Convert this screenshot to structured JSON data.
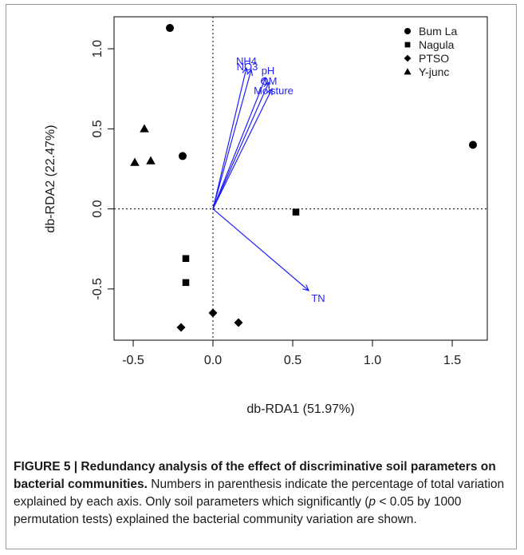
{
  "chart_data": {
    "type": "scatter",
    "xlabel": "db-RDA1 (51.97%)",
    "ylabel": "db-RDA2 (22.47%)",
    "xlim": [
      -0.62,
      1.72
    ],
    "ylim": [
      -0.82,
      1.2
    ],
    "xticks": [
      -0.5,
      0.0,
      0.5,
      1.0,
      1.5
    ],
    "yticks": [
      -0.5,
      0.0,
      0.5,
      1.0
    ],
    "xtick_labels": [
      "-0.5",
      "0.0",
      "0.5",
      "1.0",
      "1.5"
    ],
    "ytick_labels": [
      "-0.5",
      "0.0",
      "0.5",
      "1.0"
    ],
    "legend_position": "top-right",
    "reference_lines": "dotted lines at x=0 and y=0",
    "grid": false,
    "series": [
      {
        "name": "Bum La",
        "marker": "circle",
        "points": [
          [
            -0.27,
            1.13
          ],
          [
            -0.19,
            0.33
          ],
          [
            1.63,
            0.4
          ]
        ]
      },
      {
        "name": "Nagula",
        "marker": "square",
        "points": [
          [
            -0.17,
            -0.31
          ],
          [
            -0.17,
            -0.46
          ],
          [
            0.52,
            -0.02
          ]
        ]
      },
      {
        "name": "PTSO",
        "marker": "diamond",
        "points": [
          [
            -0.2,
            -0.74
          ],
          [
            0.0,
            -0.65
          ],
          [
            0.16,
            -0.71
          ]
        ]
      },
      {
        "name": "Y-junc",
        "marker": "triangle",
        "points": [
          [
            -0.43,
            0.5
          ],
          [
            -0.39,
            0.3
          ],
          [
            -0.49,
            0.29
          ]
        ]
      }
    ],
    "vectors": [
      {
        "label": "NH4",
        "x": 0.21,
        "y": 0.88
      },
      {
        "label": "NO3",
        "x": 0.24,
        "y": 0.87
      },
      {
        "label": "pH",
        "x": 0.33,
        "y": 0.82
      },
      {
        "label": "OM",
        "x": 0.35,
        "y": 0.79
      },
      {
        "label": "Moisture",
        "x": 0.37,
        "y": 0.75
      },
      {
        "label": "TN",
        "x": 0.6,
        "y": -0.51
      }
    ],
    "vector_color": "#1f1fff"
  },
  "caption": {
    "label": "FIGURE 5 | Redundancy analysis of the effect of discriminative soil parameters on bacterial communities.",
    "text_before_p": " Numbers in parenthesis indicate the percentage of total variation explained by each axis. Only soil parameters which significantly (",
    "p_symbol": "p",
    "text_after_p": " < 0.05 by 1000 permutation tests) explained the bacterial community variation are shown."
  }
}
